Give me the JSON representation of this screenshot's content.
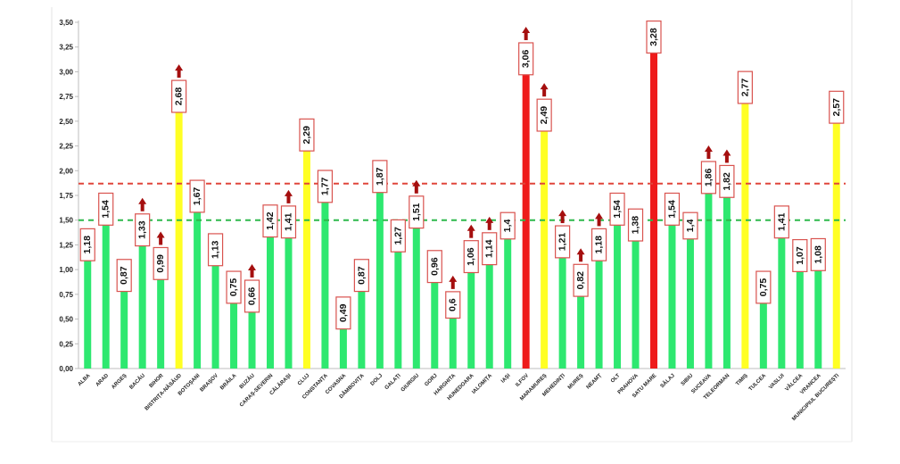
{
  "chart_data": {
    "type": "bar",
    "title": "",
    "xlabel": "",
    "ylabel": "",
    "ylim": [
      0,
      3.5
    ],
    "yticks": [
      "0,00",
      "0,25",
      "0,50",
      "0,75",
      "1,00",
      "1,25",
      "1,50",
      "1,75",
      "2,00",
      "2,25",
      "2,50",
      "2,75",
      "3,00",
      "3,25",
      "3,50"
    ],
    "grid": false,
    "legend": "none",
    "reference_lines": [
      {
        "value": 1.5,
        "color": "#2db84b",
        "style": "dashed"
      },
      {
        "value": 1.87,
        "color": "#e0463b",
        "style": "dashed"
      }
    ],
    "colors": {
      "green": "#2ee870",
      "yellow": "#ffff24",
      "red": "#ee1b1b",
      "arrow": "#a50f0f",
      "label_border": "#d9534f"
    },
    "categories": [
      "ALBA",
      "ARAD",
      "ARGEȘ",
      "BACĂU",
      "BIHOR",
      "BISTRIȚA-NĂSĂUD",
      "BOTOȘANI",
      "BRAȘOV",
      "BRĂILA",
      "BUZĂU",
      "CARAȘ-SEVERIN",
      "CĂLĂRAȘI",
      "CLUJ",
      "CONSTANȚA",
      "COVASNA",
      "DÂMBOVIȚA",
      "DOLJ",
      "GALAȚI",
      "GIURGIU",
      "GORJ",
      "HARGHITA",
      "HUNEDOARA",
      "IALOMIȚA",
      "IAȘI",
      "ILFOV",
      "MARAMUREȘ",
      "MEHEDINȚI",
      "MUREȘ",
      "NEAMȚ",
      "OLT",
      "PRAHOVA",
      "SATU MARE",
      "SĂLAJ",
      "SIBIU",
      "SUCEAVA",
      "TELEORMAN",
      "TIMIȘ",
      "TULCEA",
      "VASLUI",
      "VÂLCEA",
      "VRANCEA",
      "MUNICIPIUL BUCUREȘTI"
    ],
    "values": [
      1.18,
      1.54,
      0.87,
      1.33,
      0.99,
      2.68,
      1.67,
      1.13,
      0.75,
      0.66,
      1.42,
      1.41,
      2.29,
      1.77,
      0.49,
      0.87,
      1.87,
      1.27,
      1.51,
      0.96,
      0.6,
      1.06,
      1.14,
      1.4,
      3.06,
      2.49,
      1.21,
      0.82,
      1.18,
      1.54,
      1.38,
      3.28,
      1.54,
      1.4,
      1.86,
      1.82,
      2.77,
      0.75,
      1.41,
      1.07,
      1.08,
      2.57
    ],
    "value_labels": [
      "1,18",
      "1,54",
      "0,87",
      "1,33",
      "0,99",
      "2,68",
      "1,67",
      "1,13",
      "0,75",
      "0,66",
      "1,42",
      "1,41",
      "2,29",
      "1,77",
      "0,49",
      "0,87",
      "1,87",
      "1,27",
      "1,51",
      "0,96",
      "0,6",
      "1,06",
      "1,14",
      "1,4",
      "3,06",
      "2,49",
      "1,21",
      "0,82",
      "1,18",
      "1,54",
      "1,38",
      "3,28",
      "1,54",
      "1,4",
      "1,86",
      "1,82",
      "2,77",
      "0,75",
      "1,41",
      "1,07",
      "1,08",
      "2,57"
    ],
    "bar_colors": [
      "green",
      "green",
      "green",
      "green",
      "green",
      "yellow",
      "green",
      "green",
      "green",
      "green",
      "green",
      "green",
      "yellow",
      "green",
      "green",
      "green",
      "green",
      "green",
      "green",
      "green",
      "green",
      "green",
      "green",
      "green",
      "red",
      "yellow",
      "green",
      "green",
      "green",
      "green",
      "green",
      "red",
      "green",
      "green",
      "green",
      "green",
      "yellow",
      "green",
      "green",
      "green",
      "green",
      "yellow"
    ],
    "trend_up": [
      false,
      false,
      false,
      true,
      true,
      true,
      false,
      false,
      false,
      true,
      false,
      true,
      false,
      false,
      false,
      false,
      false,
      false,
      true,
      false,
      true,
      true,
      true,
      false,
      true,
      true,
      true,
      true,
      true,
      false,
      false,
      false,
      false,
      false,
      true,
      true,
      false,
      false,
      false,
      false,
      false,
      false
    ]
  }
}
